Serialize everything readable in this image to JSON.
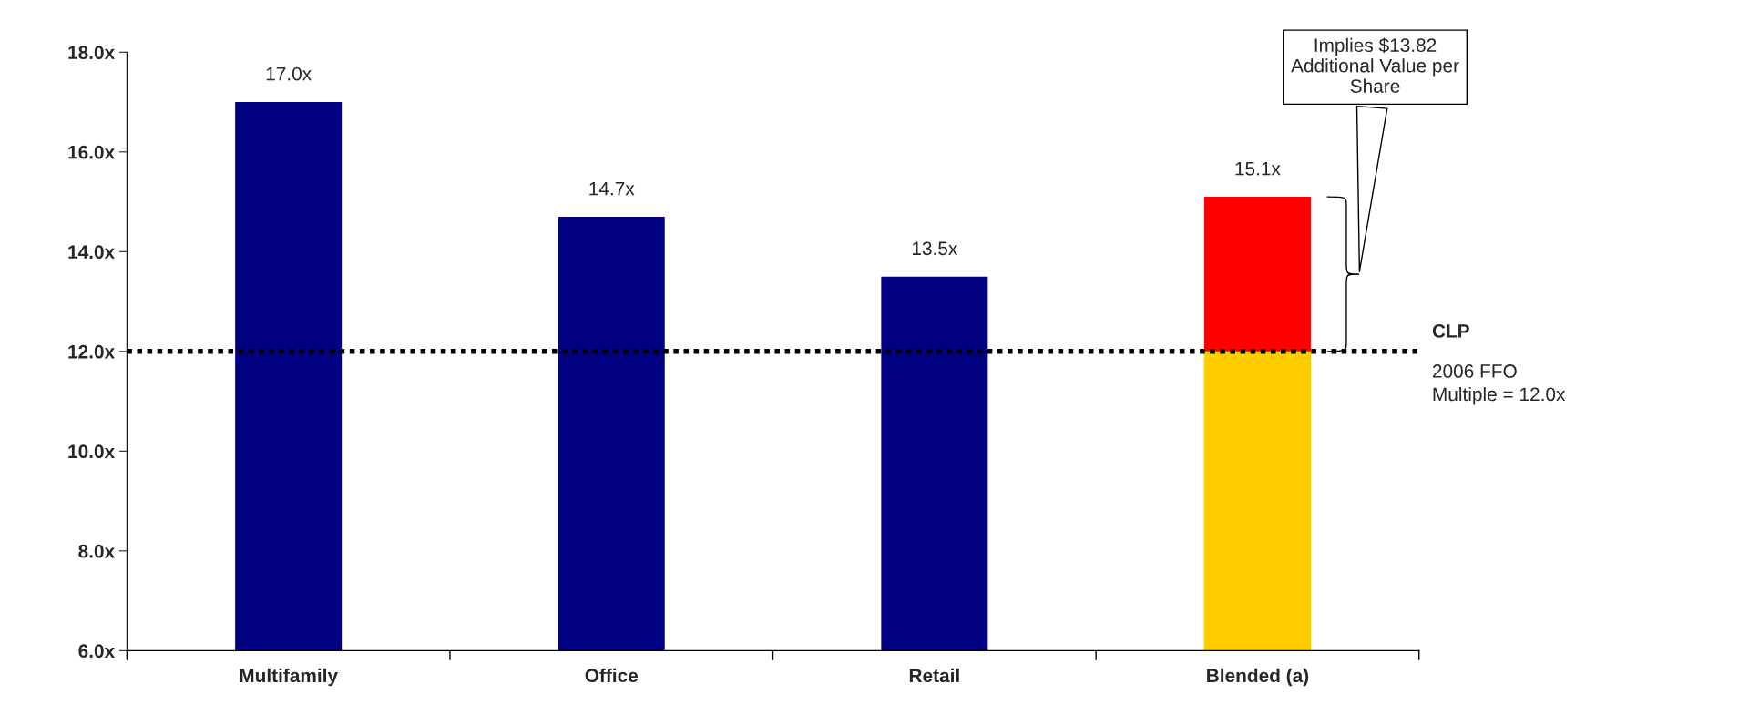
{
  "chart_data": {
    "type": "bar",
    "categories": [
      "Multifamily",
      "Office",
      "Retail",
      "Blended (a)"
    ],
    "series": [
      {
        "color": "#000080",
        "values": [
          17.0,
          14.7,
          13.5,
          null
        ],
        "value_labels": [
          "17.0x",
          "14.7x",
          "13.5x",
          null
        ]
      },
      {
        "color": "#ff0000",
        "values": [
          null,
          null,
          null,
          15.1
        ],
        "value_labels": [
          null,
          null,
          null,
          "15.1x"
        ]
      },
      {
        "color": "#ffcc00",
        "values": [
          null,
          null,
          null,
          12.0
        ]
      }
    ],
    "ylim": [
      6,
      18
    ],
    "yticks": [
      {
        "value": 6,
        "label": "6.0x"
      },
      {
        "value": 8,
        "label": "8.0x"
      },
      {
        "value": 10,
        "label": "10.0x"
      },
      {
        "value": 12,
        "label": "12.0x"
      },
      {
        "value": 14,
        "label": "14.0x"
      },
      {
        "value": 16,
        "label": "16.0x"
      },
      {
        "value": 18,
        "label": "18.0x"
      }
    ],
    "ref_lines": [
      {
        "axis": "y",
        "value": 12,
        "label": "CLP",
        "color": "#000000",
        "line_style": "dotted"
      }
    ],
    "annotations": [
      "Implies $13.82\nAdditional Value per\nShare",
      "2006 FFO\nMultiple = 12.0x"
    ],
    "grid": false,
    "legend": false
  }
}
